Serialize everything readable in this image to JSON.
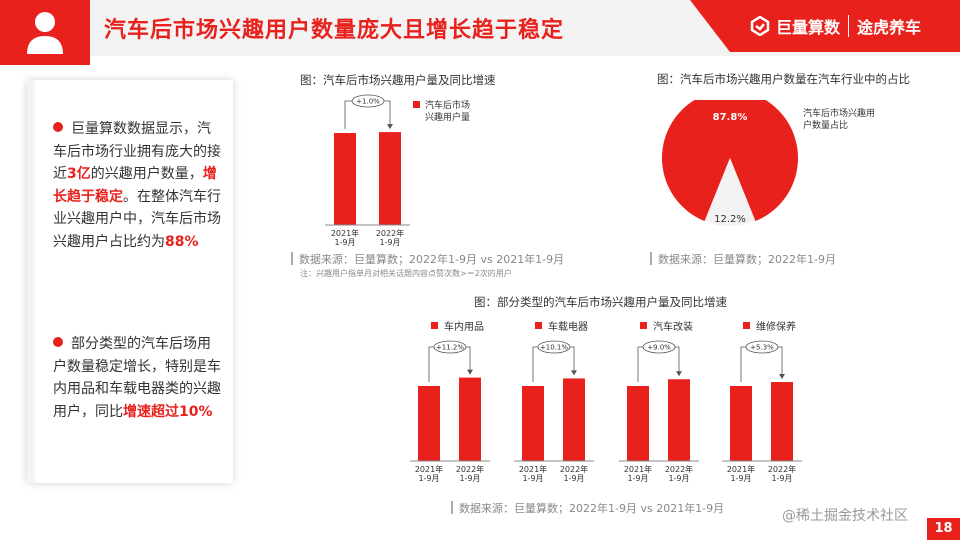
{
  "header": {
    "title": "汽车后市场兴趣用户数量庞大且增长趋于稳定",
    "brand_left": "巨量算数",
    "brand_right": "途虎养车"
  },
  "left_panel": {
    "bullet1": {
      "p1": "巨量算数数据显示，汽车后市场行业拥有庞大的接近",
      "h1": "3亿",
      "p2": "的兴趣用户数量，",
      "h2": "增长趋于稳定",
      "p3": "。在整体汽车行业兴趣用户中，汽车后市场兴趣用户占比约为",
      "h3": "88%"
    },
    "bullet2": {
      "p1": "部分类型的汽车后场用户数量稳定增长，特别是车内用品和车载电器类的兴趣用户，同比",
      "h1": "增速超过10%"
    }
  },
  "colors": {
    "accent": "#e8211c",
    "pie_minor": "#f2f2f2"
  },
  "chart_data": [
    {
      "type": "bar",
      "title": "图：汽车后市场兴趣用户量及同比增速",
      "categories": [
        "2021年\n1-9月",
        "2022年\n1-9月"
      ],
      "series": [
        {
          "name": "汽车后市场兴趣用户量",
          "values": [
            100,
            101
          ]
        }
      ],
      "growth_label": "+1.0%",
      "source": "数据来源：巨量算数；2022年1-9月 vs 2021年1-9月",
      "note": "注：兴趣用户指单月对相关话题内容点赞次数>＝2次的用户"
    },
    {
      "type": "pie",
      "title": "图：汽车后市场兴趣用户数量在汽车行业中的占比",
      "slices": [
        {
          "name": "汽车后市场兴趣用户数量占比",
          "value": 87.8,
          "label": "87.8%"
        },
        {
          "name": "",
          "value": 12.2,
          "label": "12.2%"
        }
      ],
      "source": "数据来源：巨量算数；2022年1-9月"
    },
    {
      "type": "bar",
      "title": "图：部分类型的汽车后市场兴趣用户量及同比增速",
      "categories": [
        "2021年\n1-9月",
        "2022年\n1-9月"
      ],
      "groups": [
        {
          "name": "车内用品",
          "values": [
            100,
            111.2
          ],
          "growth_label": "+11.2%"
        },
        {
          "name": "车载电器",
          "values": [
            100,
            110.1
          ],
          "growth_label": "+10.1%"
        },
        {
          "name": "汽车改装",
          "values": [
            100,
            109.0
          ],
          "growth_label": "+9.0%"
        },
        {
          "name": "维修保养",
          "values": [
            100,
            105.3
          ],
          "growth_label": "+5.3%"
        }
      ],
      "source": "数据来源：巨量算数；2022年1-9月 vs 2021年1-9月"
    }
  ],
  "watermark": "@稀土掘金技术社区",
  "page_number": "18"
}
